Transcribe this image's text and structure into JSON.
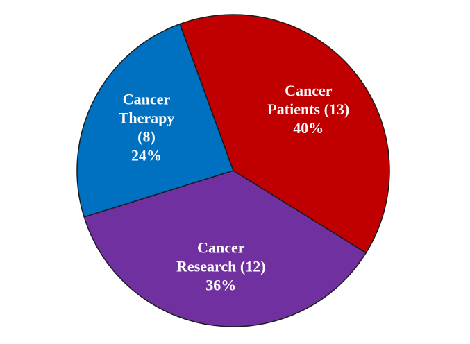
{
  "chart_data": {
    "type": "pie",
    "title": "",
    "slices": [
      {
        "label": "Cancer Patients",
        "value": 13,
        "percent": 40,
        "color": "#C00000",
        "text_lines": [
          "Cancer",
          "Patients (13)",
          "40%"
        ]
      },
      {
        "label": "Cancer Research",
        "value": 12,
        "percent": 36,
        "color": "#7030A0",
        "text_lines": [
          "Cancer",
          "Research (12)",
          "36%"
        ]
      },
      {
        "label": "Cancer Therapy",
        "value": 8,
        "percent": 24,
        "color": "#0070C0",
        "text_lines": [
          "Cancer",
          "Therapy",
          "(8)",
          "24%"
        ]
      }
    ]
  }
}
